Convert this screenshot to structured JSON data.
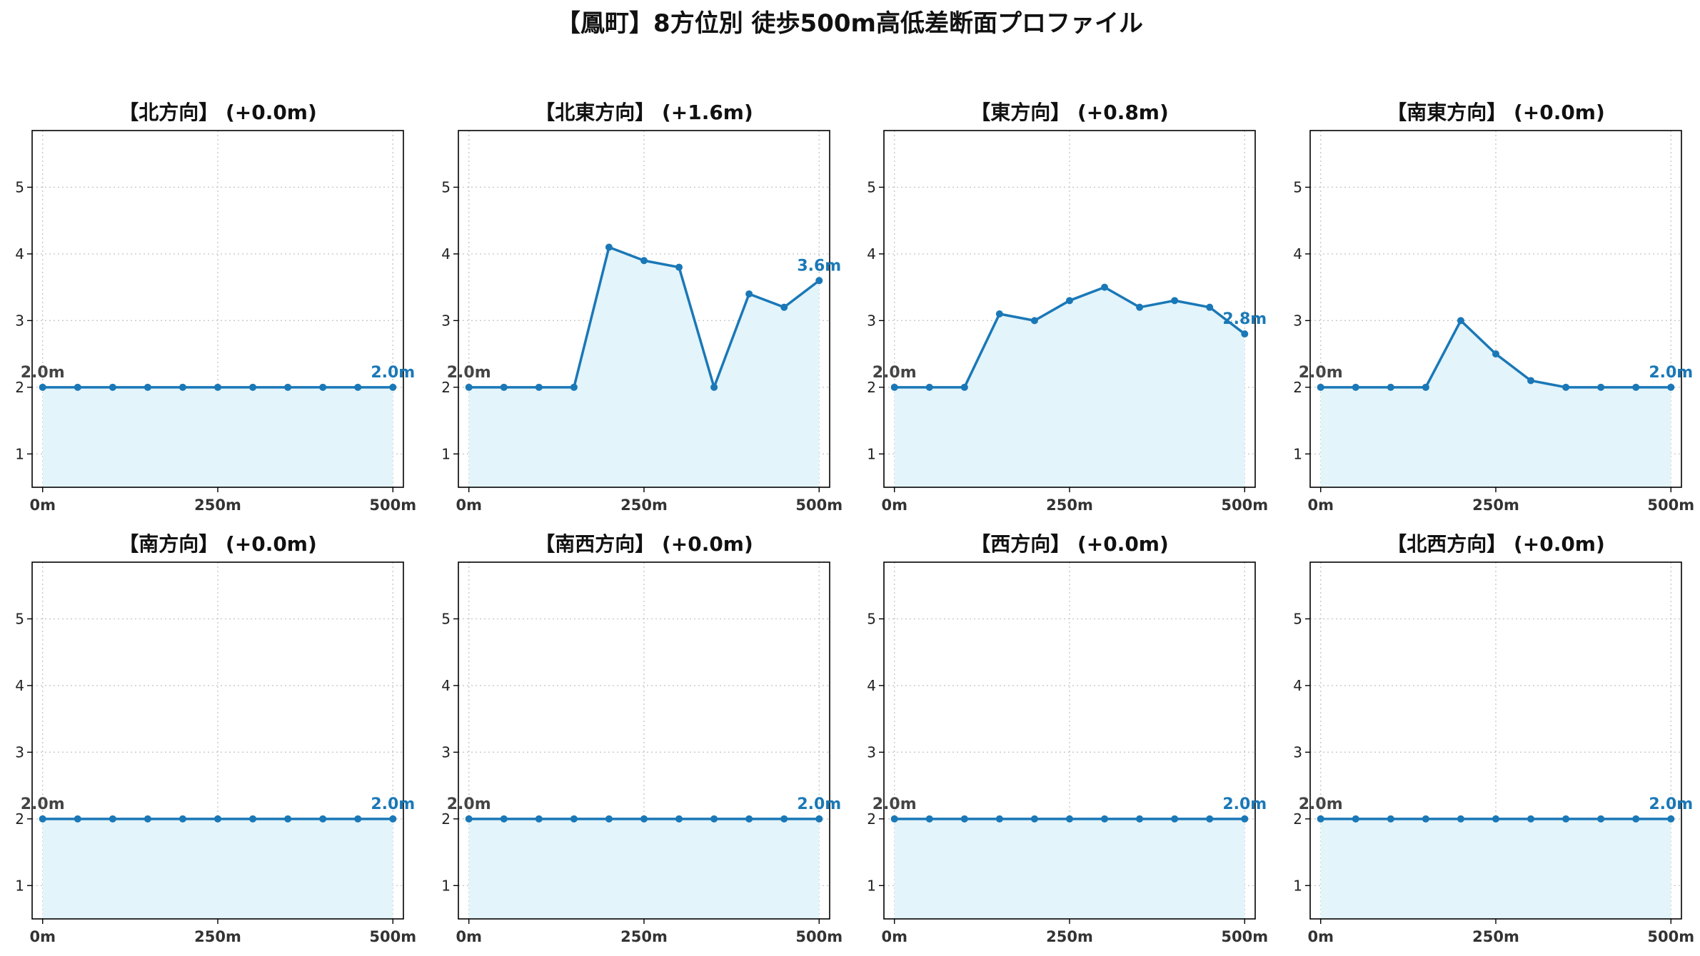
{
  "title": "【鳳町】8方位別 徒歩500m高低差断面プロファイル",
  "colors": {
    "line": "#1a78b7",
    "fill": "#e3f4fb",
    "grid": "#c8c8c8",
    "start_label": "#444444",
    "end_label": "#1a78b7"
  },
  "chart_data": [
    {
      "type": "line",
      "title": "【北方向】 (+0.0m)",
      "x": [
        0,
        50,
        100,
        150,
        200,
        250,
        300,
        350,
        400,
        450,
        500
      ],
      "y": [
        2.0,
        2.0,
        2.0,
        2.0,
        2.0,
        2.0,
        2.0,
        2.0,
        2.0,
        2.0,
        2.0
      ],
      "ylim": [
        0.5,
        5.85
      ],
      "xlim": [
        -15,
        515
      ],
      "yticks": [
        1,
        2,
        3,
        4,
        5
      ],
      "xticks": [
        0,
        250,
        500
      ],
      "xtick_labels": [
        "0m",
        "250m",
        "500m"
      ],
      "start_label": "2.0m",
      "end_label": "2.0m",
      "grid": true
    },
    {
      "type": "line",
      "title": "【北東方向】 (+1.6m)",
      "x": [
        0,
        50,
        100,
        150,
        200,
        250,
        300,
        350,
        400,
        450,
        500
      ],
      "y": [
        2.0,
        2.0,
        2.0,
        2.0,
        4.1,
        3.9,
        3.8,
        2.0,
        3.4,
        3.2,
        3.6
      ],
      "ylim": [
        0.5,
        5.85
      ],
      "xlim": [
        -15,
        515
      ],
      "yticks": [
        1,
        2,
        3,
        4,
        5
      ],
      "xticks": [
        0,
        250,
        500
      ],
      "xtick_labels": [
        "0m",
        "250m",
        "500m"
      ],
      "start_label": "2.0m",
      "end_label": "3.6m",
      "grid": true
    },
    {
      "type": "line",
      "title": "【東方向】 (+0.8m)",
      "x": [
        0,
        50,
        100,
        150,
        200,
        250,
        300,
        350,
        400,
        450,
        500
      ],
      "y": [
        2.0,
        2.0,
        2.0,
        3.1,
        3.0,
        3.3,
        3.5,
        3.2,
        3.3,
        3.2,
        2.8
      ],
      "ylim": [
        0.5,
        5.85
      ],
      "xlim": [
        -15,
        515
      ],
      "yticks": [
        1,
        2,
        3,
        4,
        5
      ],
      "xticks": [
        0,
        250,
        500
      ],
      "xtick_labels": [
        "0m",
        "250m",
        "500m"
      ],
      "start_label": "2.0m",
      "end_label": "2.8m",
      "grid": true
    },
    {
      "type": "line",
      "title": "【南東方向】 (+0.0m)",
      "x": [
        0,
        50,
        100,
        150,
        200,
        250,
        300,
        350,
        400,
        450,
        500
      ],
      "y": [
        2.0,
        2.0,
        2.0,
        2.0,
        3.0,
        2.5,
        2.1,
        2.0,
        2.0,
        2.0,
        2.0
      ],
      "ylim": [
        0.5,
        5.85
      ],
      "xlim": [
        -15,
        515
      ],
      "yticks": [
        1,
        2,
        3,
        4,
        5
      ],
      "xticks": [
        0,
        250,
        500
      ],
      "xtick_labels": [
        "0m",
        "250m",
        "500m"
      ],
      "start_label": "2.0m",
      "end_label": "2.0m",
      "grid": true
    },
    {
      "type": "line",
      "title": "【南方向】 (+0.0m)",
      "x": [
        0,
        50,
        100,
        150,
        200,
        250,
        300,
        350,
        400,
        450,
        500
      ],
      "y": [
        2.0,
        2.0,
        2.0,
        2.0,
        2.0,
        2.0,
        2.0,
        2.0,
        2.0,
        2.0,
        2.0
      ],
      "ylim": [
        0.5,
        5.85
      ],
      "xlim": [
        -15,
        515
      ],
      "yticks": [
        1,
        2,
        3,
        4,
        5
      ],
      "xticks": [
        0,
        250,
        500
      ],
      "xtick_labels": [
        "0m",
        "250m",
        "500m"
      ],
      "start_label": "2.0m",
      "end_label": "2.0m",
      "grid": true
    },
    {
      "type": "line",
      "title": "【南西方向】 (+0.0m)",
      "x": [
        0,
        50,
        100,
        150,
        200,
        250,
        300,
        350,
        400,
        450,
        500
      ],
      "y": [
        2.0,
        2.0,
        2.0,
        2.0,
        2.0,
        2.0,
        2.0,
        2.0,
        2.0,
        2.0,
        2.0
      ],
      "ylim": [
        0.5,
        5.85
      ],
      "xlim": [
        -15,
        515
      ],
      "yticks": [
        1,
        2,
        3,
        4,
        5
      ],
      "xticks": [
        0,
        250,
        500
      ],
      "xtick_labels": [
        "0m",
        "250m",
        "500m"
      ],
      "start_label": "2.0m",
      "end_label": "2.0m",
      "grid": true
    },
    {
      "type": "line",
      "title": "【西方向】 (+0.0m)",
      "x": [
        0,
        50,
        100,
        150,
        200,
        250,
        300,
        350,
        400,
        450,
        500
      ],
      "y": [
        2.0,
        2.0,
        2.0,
        2.0,
        2.0,
        2.0,
        2.0,
        2.0,
        2.0,
        2.0,
        2.0
      ],
      "ylim": [
        0.5,
        5.85
      ],
      "xlim": [
        -15,
        515
      ],
      "yticks": [
        1,
        2,
        3,
        4,
        5
      ],
      "xticks": [
        0,
        250,
        500
      ],
      "xtick_labels": [
        "0m",
        "250m",
        "500m"
      ],
      "start_label": "2.0m",
      "end_label": "2.0m",
      "grid": true
    },
    {
      "type": "line",
      "title": "【北西方向】 (+0.0m)",
      "x": [
        0,
        50,
        100,
        150,
        200,
        250,
        300,
        350,
        400,
        450,
        500
      ],
      "y": [
        2.0,
        2.0,
        2.0,
        2.0,
        2.0,
        2.0,
        2.0,
        2.0,
        2.0,
        2.0,
        2.0
      ],
      "ylim": [
        0.5,
        5.85
      ],
      "xlim": [
        -15,
        515
      ],
      "yticks": [
        1,
        2,
        3,
        4,
        5
      ],
      "xticks": [
        0,
        250,
        500
      ],
      "xtick_labels": [
        "0m",
        "250m",
        "500m"
      ],
      "start_label": "2.0m",
      "end_label": "2.0m",
      "grid": true
    }
  ]
}
